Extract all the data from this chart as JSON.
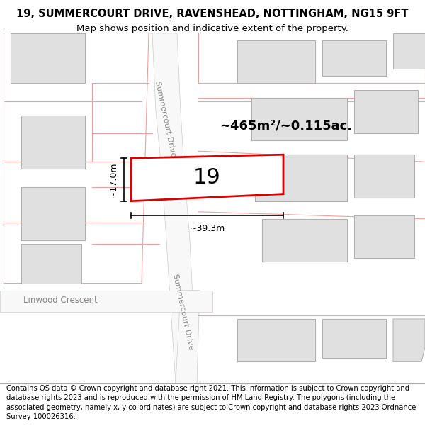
{
  "title_line1": "19, SUMMERCOURT DRIVE, RAVENSHEAD, NOTTINGHAM, NG15 9FT",
  "title_line2": "Map shows position and indicative extent of the property.",
  "footer_text": "Contains OS data © Crown copyright and database right 2021. This information is subject to Crown copyright and database rights 2023 and is reproduced with the permission of HM Land Registry. The polygons (including the associated geometry, namely x, y co-ordinates) are subject to Crown copyright and database rights 2023 Ordnance Survey 100026316.",
  "map_bg": "#ffffff",
  "road_color": "#f5f5f5",
  "building_fill": "#e0e0e0",
  "building_edge": "#b0b0b0",
  "plot_fill": "#ffffff",
  "plot_boundary_color": "#f0a0a0",
  "plot_edge": "#dd0000",
  "plot_edge_width": 2.0,
  "area_text": "~465m²/~0.115ac.",
  "width_text": "~39.3m",
  "height_text": "~17.0m",
  "number_text": "19",
  "road_label": "Summercourt Drive",
  "road_label2": "Summercourt Drive",
  "street_label": "Linwood Crescent",
  "title_fontsize": 10.5,
  "subtitle_fontsize": 9.5,
  "footer_fontsize": 7.2,
  "annotation_color": "#000000",
  "boundary_lw": 0.8
}
